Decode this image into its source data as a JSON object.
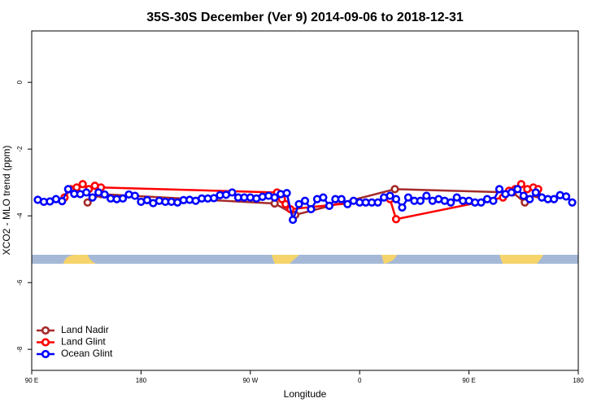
{
  "chart_data": {
    "type": "line",
    "title": "35S-30S December (Ver 9)   2014-09-06 to 2018-12-31",
    "xlabel": "Longitude",
    "ylabel": "XCO2 - MLO trend (ppm)",
    "xlim": [
      90,
      540
    ],
    "ylim": [
      -8.63,
      1.54
    ],
    "xticks": [
      {
        "value": 90,
        "label": "90 E"
      },
      {
        "value": 180,
        "label": "180"
      },
      {
        "value": 270,
        "label": "90 W"
      },
      {
        "value": 360,
        "label": "0"
      },
      {
        "value": 450,
        "label": "90 E"
      },
      {
        "value": 540,
        "label": "180"
      }
    ],
    "yticks": [
      0,
      -2,
      -4,
      -6,
      -8
    ],
    "legend": "lower left",
    "series": [
      {
        "name": "Land Nadir",
        "color": "#a52a2a",
        "x": [
          136,
          147,
          290,
          307,
          389,
          486,
          496,
          506
        ],
        "values": [
          -3.6,
          -3.35,
          -3.63,
          -3.97,
          -3.2,
          -3.3,
          -3.6,
          -3.35
        ]
      },
      {
        "name": "Land Glint",
        "color": "#ff0000",
        "x": [
          117,
          122,
          127,
          132,
          137,
          142,
          147,
          292,
          296,
          299,
          303,
          385,
          390,
          478,
          483,
          488,
          493,
          498,
          503,
          507
        ],
        "values": [
          -3.45,
          -3.2,
          -3.15,
          -3.05,
          -3.2,
          -3.1,
          -3.15,
          -3.3,
          -3.5,
          -3.65,
          -3.8,
          -3.5,
          -4.1,
          -3.45,
          -3.25,
          -3.2,
          -3.05,
          -3.2,
          -3.15,
          -3.2
        ]
      },
      {
        "name": "Ocean Glint",
        "color": "#0000ff",
        "x": [
          95,
          100,
          105,
          110,
          115,
          120,
          125,
          130,
          135,
          140,
          145,
          150,
          155,
          160,
          165,
          170,
          175,
          180,
          185,
          190,
          195,
          200,
          205,
          210,
          215,
          220,
          225,
          230,
          235,
          240,
          245,
          250,
          255,
          260,
          265,
          270,
          275,
          280,
          285,
          290,
          295,
          300,
          305,
          310,
          315,
          320,
          325,
          330,
          335,
          340,
          345,
          350,
          355,
          360,
          365,
          370,
          375,
          380,
          385,
          390,
          395,
          400,
          405,
          410,
          415,
          420,
          425,
          430,
          435,
          440,
          445,
          450,
          455,
          460,
          465,
          470,
          475,
          480,
          485,
          490,
          495,
          500,
          505,
          510,
          515,
          520,
          525,
          530,
          535
        ],
        "values": [
          -3.52,
          -3.58,
          -3.57,
          -3.5,
          -3.56,
          -3.2,
          -3.34,
          -3.35,
          -3.3,
          -3.45,
          -3.3,
          -3.36,
          -3.48,
          -3.5,
          -3.48,
          -3.36,
          -3.4,
          -3.58,
          -3.53,
          -3.62,
          -3.55,
          -3.58,
          -3.58,
          -3.6,
          -3.53,
          -3.52,
          -3.55,
          -3.48,
          -3.48,
          -3.47,
          -3.38,
          -3.37,
          -3.3,
          -3.45,
          -3.45,
          -3.45,
          -3.48,
          -3.43,
          -3.4,
          -3.45,
          -3.35,
          -3.32,
          -4.12,
          -3.65,
          -3.55,
          -3.8,
          -3.5,
          -3.45,
          -3.7,
          -3.5,
          -3.5,
          -3.65,
          -3.55,
          -3.6,
          -3.6,
          -3.6,
          -3.6,
          -3.45,
          -3.4,
          -3.5,
          -3.75,
          -3.45,
          -3.55,
          -3.55,
          -3.4,
          -3.55,
          -3.5,
          -3.55,
          -3.6,
          -3.45,
          -3.55,
          -3.55,
          -3.6,
          -3.6,
          -3.5,
          -3.55,
          -3.2,
          -3.35,
          -3.3,
          -3.2,
          -3.4,
          -3.5,
          -3.3,
          -3.45,
          -3.5,
          -3.5,
          -3.38,
          -3.42,
          -3.6
        ]
      }
    ]
  }
}
